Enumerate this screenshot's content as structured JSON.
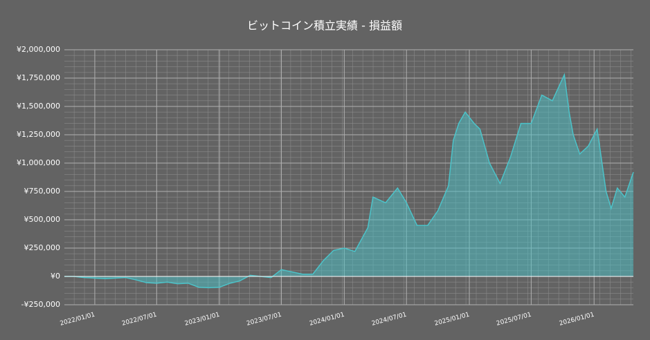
{
  "chart_data": {
    "type": "area",
    "title": "ビットコイン積立実績 - 損益額",
    "x": [
      "2021-10-04",
      "2021-11-01",
      "2021-12-01",
      "2022-01-01",
      "2022-02-01",
      "2022-03-01",
      "2022-04-01",
      "2022-05-01",
      "2022-06-01",
      "2022-07-01",
      "2022-08-01",
      "2022-09-01",
      "2022-10-01",
      "2022-11-01",
      "2022-12-01",
      "2023-01-01",
      "2023-02-01",
      "2023-03-01",
      "2023-04-01",
      "2023-05-01",
      "2023-06-01",
      "2023-07-01",
      "2023-08-01",
      "2023-09-01",
      "2023-10-01",
      "2023-11-01",
      "2023-12-01",
      "2024-01-01",
      "2024-02-01",
      "2024-03-10",
      "2024-03-25",
      "2024-05-01",
      "2024-06-05",
      "2024-07-01",
      "2024-08-01",
      "2024-09-01",
      "2024-10-01",
      "2024-11-01",
      "2024-11-15",
      "2024-12-01",
      "2024-12-20",
      "2025-01-15",
      "2025-02-01",
      "2025-03-01",
      "2025-04-01",
      "2025-05-01",
      "2025-06-01",
      "2025-07-01",
      "2025-08-01",
      "2025-09-01",
      "2025-10-06",
      "2025-10-20",
      "2025-11-01",
      "2025-11-20",
      "2025-12-15",
      "2026-01-10",
      "2026-02-05",
      "2026-02-20",
      "2026-03-10",
      "2026-04-01",
      "2026-04-26"
    ],
    "series": [
      {
        "name": "損益額",
        "color": "#4cc3c9",
        "values": [
          0,
          0,
          -10000,
          -15000,
          -20000,
          -15000,
          -10000,
          -30000,
          -55000,
          -60000,
          -50000,
          -65000,
          -60000,
          -95000,
          -100000,
          -95000,
          -60000,
          -40000,
          10000,
          0,
          -10000,
          60000,
          40000,
          20000,
          20000,
          140000,
          230000,
          250000,
          220000,
          430000,
          700000,
          650000,
          780000,
          650000,
          450000,
          450000,
          580000,
          800000,
          1200000,
          1350000,
          1450000,
          1350000,
          1300000,
          1000000,
          820000,
          1050000,
          1350000,
          1350000,
          1600000,
          1550000,
          1780000,
          1450000,
          1250000,
          1080000,
          1150000,
          1300000,
          750000,
          600000,
          780000,
          700000,
          920000
        ]
      }
    ],
    "xlim": [
      "2021-10-04",
      "2026-04-26"
    ],
    "xticks": [
      {
        "value": "2022-01-01",
        "label": "2022/01/01"
      },
      {
        "value": "2022-07-01",
        "label": "2022/07/01"
      },
      {
        "value": "2023-01-01",
        "label": "2023/01/01"
      },
      {
        "value": "2023-07-01",
        "label": "2023/07/01"
      },
      {
        "value": "2024-01-01",
        "label": "2024/01/01"
      },
      {
        "value": "2024-07-01",
        "label": "2024/07/01"
      },
      {
        "value": "2025-01-01",
        "label": "2025/01/01"
      },
      {
        "value": "2025-07-01",
        "label": "2025/07/01"
      },
      {
        "value": "2026-01-01",
        "label": "2026/01/01"
      }
    ],
    "ylim": [
      -250000,
      2000000
    ],
    "yticks": [
      {
        "value": -250000,
        "label": "-¥250,000"
      },
      {
        "value": 0,
        "label": "¥0"
      },
      {
        "value": 250000,
        "label": "¥250,000"
      },
      {
        "value": 500000,
        "label": "¥500,000"
      },
      {
        "value": 750000,
        "label": "¥750,000"
      },
      {
        "value": 1000000,
        "label": "¥1,000,000"
      },
      {
        "value": 1250000,
        "label": "¥1,250,000"
      },
      {
        "value": 1500000,
        "label": "¥1,500,000"
      },
      {
        "value": 1750000,
        "label": "¥1,750,000"
      },
      {
        "value": 2000000,
        "label": "¥2,000,000"
      }
    ],
    "grid": true
  }
}
